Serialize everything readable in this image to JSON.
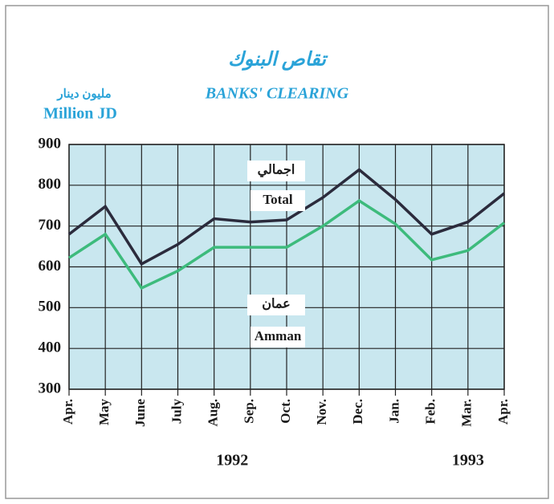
{
  "chart_data": {
    "type": "line",
    "title": "تقاص البنوك",
    "subtitle": "BANKS' CLEARING",
    "y_label_arabic": "مليون دينار",
    "y_label": "Million JD",
    "categories": [
      "Apr.",
      "May",
      "June",
      "July",
      "Aug.",
      "Sep.",
      "Oct.",
      "Nov.",
      "Dec.",
      "Jan.",
      "Feb.",
      "Mar.",
      "Apr."
    ],
    "year_labels": [
      "1992",
      "1993"
    ],
    "series": [
      {
        "name": "Total",
        "name_arabic": "اجمالي",
        "color": "#2b2b3c",
        "values": [
          680,
          748,
          607,
          655,
          718,
          710,
          715,
          770,
          838,
          765,
          680,
          710,
          780
        ]
      },
      {
        "name": "Amman",
        "name_arabic": "عمان",
        "color": "#3dbb7c",
        "values": [
          622,
          680,
          548,
          590,
          648,
          648,
          648,
          700,
          762,
          705,
          617,
          640,
          708
        ]
      }
    ],
    "ylim": [
      300,
      900
    ],
    "yticks": [
      300,
      400,
      500,
      600,
      700,
      800,
      900
    ],
    "grid": true
  }
}
